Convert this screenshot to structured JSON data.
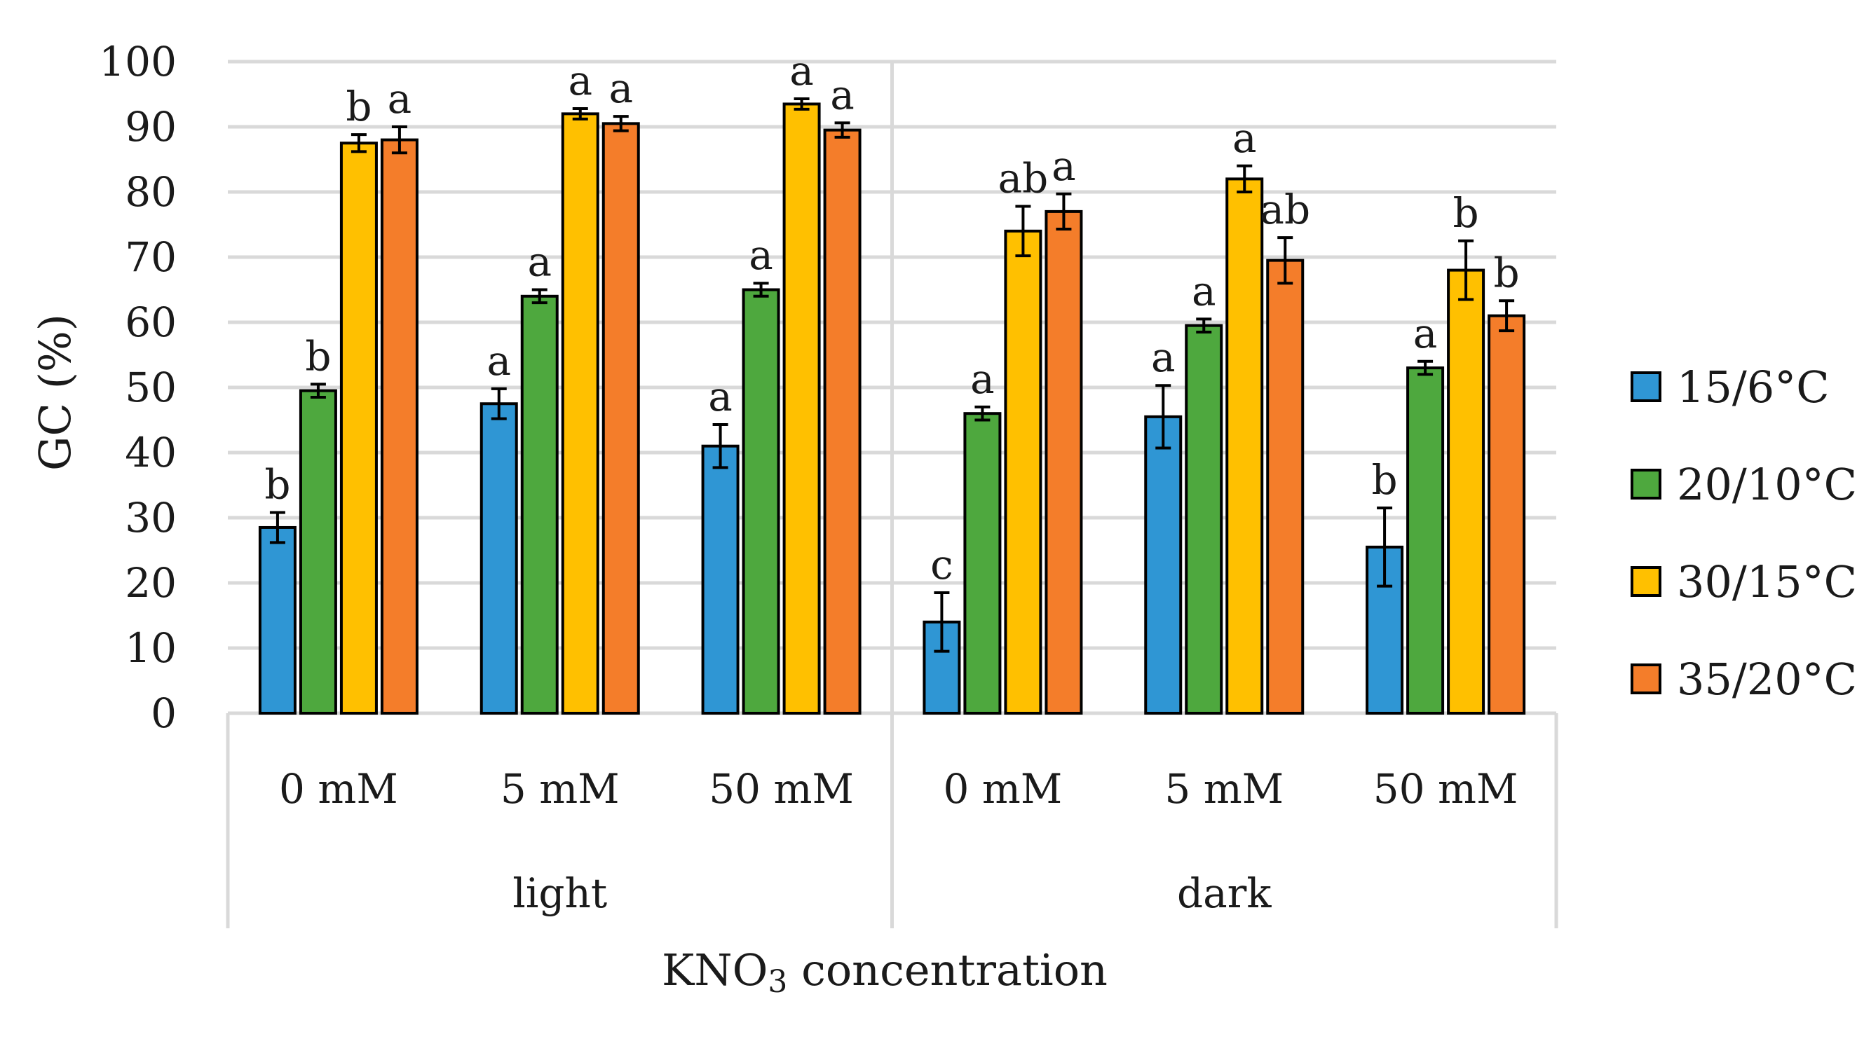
{
  "chart_data": {
    "type": "bar",
    "title": "",
    "ylabel": "GC (%)",
    "xlabel": "KNO3 concentration",
    "xlabel_main": "KNO",
    "xlabel_sub": "3",
    "xlabel_rest": " concentration",
    "ylim": [
      0,
      100
    ],
    "yticks": [
      0,
      10,
      20,
      30,
      40,
      50,
      60,
      70,
      80,
      90,
      100
    ],
    "grid": true,
    "legend_position": "right",
    "groups": [
      "light",
      "dark"
    ],
    "categories": [
      "0 mM",
      "5 mM",
      "50 mM",
      "0 mM",
      "5 mM",
      "50 mM"
    ],
    "series": [
      {
        "name": "15/6°C",
        "color": "#2f96d4",
        "values": [
          28.5,
          47.5,
          41,
          14,
          45.5,
          25.5
        ],
        "errors": [
          2.3,
          2.3,
          3.3,
          4.5,
          4.8,
          6
        ],
        "letters": [
          "b",
          "a",
          "a",
          "c",
          "a",
          "b"
        ]
      },
      {
        "name": "20/10°C",
        "color": "#4ea83e",
        "values": [
          49.5,
          64,
          65,
          46,
          59.5,
          53
        ],
        "errors": [
          1,
          1,
          1,
          1,
          1,
          1
        ],
        "letters": [
          "b",
          "a",
          "a",
          "a",
          "a",
          "a"
        ]
      },
      {
        "name": "30/15°C",
        "color": "#ffc000",
        "values": [
          87.5,
          92,
          93.5,
          74,
          82,
          68
        ],
        "errors": [
          1.3,
          0.8,
          0.8,
          3.8,
          2,
          4.5
        ],
        "letters": [
          "b",
          "a",
          "a",
          "ab",
          "a",
          "b"
        ]
      },
      {
        "name": "35/20°C",
        "color": "#f47d2a",
        "values": [
          88,
          90.5,
          89.5,
          77,
          69.5,
          61
        ],
        "errors": [
          2,
          1.1,
          1.1,
          2.7,
          3.5,
          2.3
        ],
        "letters": [
          "a",
          "a",
          "a",
          "a",
          "ab",
          "b"
        ]
      }
    ]
  }
}
